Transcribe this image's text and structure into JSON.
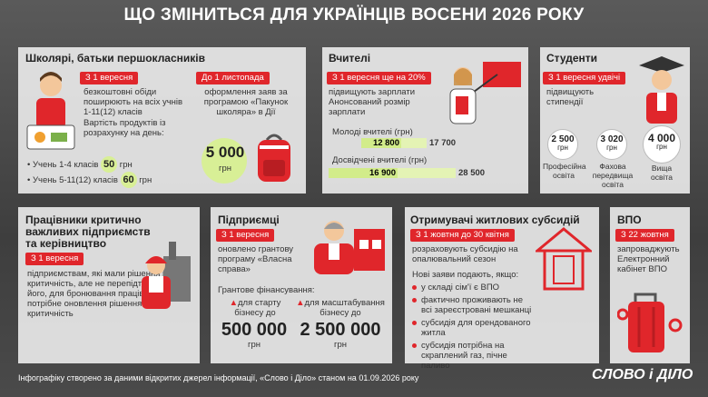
{
  "header": {
    "title": "ЩО ЗМІНИТЬСЯ ДЛЯ УКРАЇНЦІВ ВОСЕНИ 2026 РОКУ"
  },
  "cards": [
    {
      "title": "Школярі, батьки першокласників",
      "tag": "З 1 вересня",
      "text": "безкоштовні обіди поширюють на всіх учнів 1-11(12) класів",
      "note": "Вартість продуктів із розрахунку на день:",
      "prices": [
        {
          "label": "Учень 1-4 класів",
          "amount": "50",
          "unit": "грн"
        },
        {
          "label": "Учень 5-11(12) класів",
          "amount": "60",
          "unit": "грн"
        }
      ],
      "tag2": "До 1 листопада",
      "text2": "оформлення заяв за програмою «Пакунок школяра» в Дії",
      "amount": "5 000",
      "unit": "грн"
    },
    {
      "title": "Вчителі",
      "tag": "З 1 вересня ще на 20%",
      "text": "підвищують зарплати",
      "note": "Анонсований розмір зарплати",
      "rows": [
        {
          "label": "Молоді вчителі (грн)",
          "from": "12 800",
          "to": "17 700"
        },
        {
          "label": "Досвідчені вчителі (грн)",
          "from": "16 900",
          "to": "28 500"
        }
      ]
    },
    {
      "title": "Студенти",
      "tag": "З 1 вересня удвічі",
      "text": "підвищують стипендії",
      "items": [
        {
          "amount": "2 500",
          "unit": "грн",
          "label": "Професійна освіта"
        },
        {
          "amount": "3 020",
          "unit": "грн",
          "label": "Фахова передвища освіта"
        },
        {
          "amount": "4 000",
          "unit": "грн",
          "label": "Вища освіта"
        }
      ]
    },
    {
      "title": "Працівники критично важливих підприємств та керівництво",
      "tag": "З 1 вересня",
      "text": "підприємствам, які мали рішення про критичність, але не перепідтвердили його, для бронювання працівників потрібне оновлення рішення про критичність"
    },
    {
      "title": "Підприємці",
      "tag": "З 1 вересня",
      "text": "оновлено грантову програму «Власна справа»",
      "note": "Грантове фінансування:",
      "grants": [
        {
          "label": "для старту бізнесу до",
          "amount": "500 000",
          "unit": "грн"
        },
        {
          "label": "для масштабування бізнесу до",
          "amount": "2 500 000",
          "unit": "грн"
        }
      ]
    },
    {
      "title": "Отримувачі житлових субсидій",
      "tag": "З 1 жовтня до 30 квітня",
      "text": "розраховують субсидію на опалювальний сезон",
      "note": "Нові заяви подають, якщо:",
      "list": [
        "у складі сім'ї є ВПО",
        "фактично проживають не всі зареєстровані мешканці",
        "субсидія для орендованого житла",
        "субсидія потрібна на скраплений газ, пічне паливо"
      ]
    },
    {
      "title": "ВПО",
      "tag": "З 22 жовтня",
      "text": "запроваджують Електронний кабінет ВПО"
    }
  ],
  "footer": {
    "source": "Інфографіку створено за даними відкритих джерел інформації, «Слово і Діло» станом на 01.09.2026 року",
    "logo": "СЛОВО і ДІЛО"
  }
}
